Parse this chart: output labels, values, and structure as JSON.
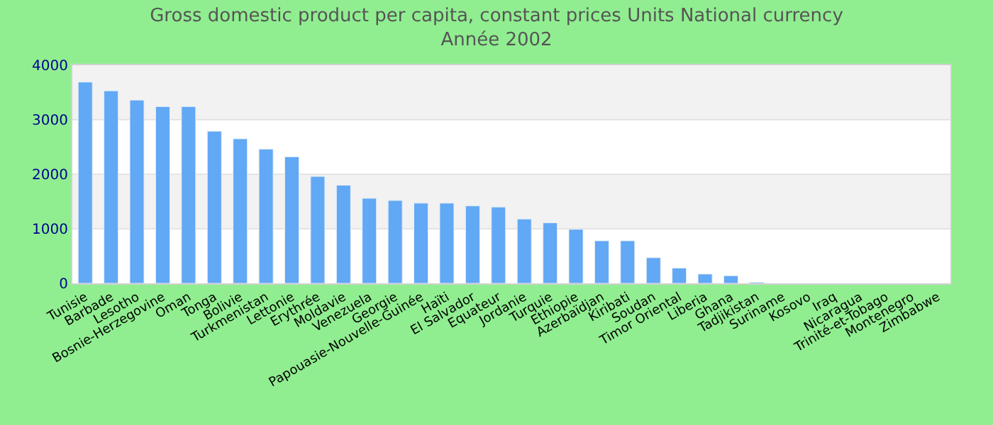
{
  "chart_data": {
    "type": "bar",
    "title": "Gross domestic product per capita, constant prices Units National currency",
    "subtitle": "Année 2002",
    "categories": [
      "Tunisie",
      "Barbade",
      "Lesotho",
      "Bosnie-Herzegovine",
      "Oman",
      "Tonga",
      "Bolivie",
      "Turkmenistan",
      "Lettonie",
      "Erythrée",
      "Moldavie",
      "Venezuela",
      "Georgie",
      "Papouasie-Nouvelle-Guinée",
      "Haïti",
      "El Salvador",
      "Equateur",
      "Jordanie",
      "Turquie",
      "Ethiopie",
      "Azerbaïdjan",
      "Kiribati",
      "Soudan",
      "Timor Oriental",
      "Liberia",
      "Ghana",
      "Tadjikistan",
      "Suriname",
      "Kosovo",
      "Iraq",
      "Nicaragua",
      "Trinité-et-Tobago",
      "Montenegro",
      "Zimbabwe"
    ],
    "values": [
      3690,
      3530,
      3360,
      3240,
      3240,
      2790,
      2650,
      2460,
      2320,
      1960,
      1800,
      1560,
      1520,
      1470,
      1470,
      1420,
      1400,
      1180,
      1110,
      990,
      780,
      780,
      470,
      280,
      170,
      140,
      20,
      null,
      null,
      null,
      null,
      null,
      null,
      null
    ],
    "color": "#61a8f5",
    "ylim": [
      0,
      4000
    ],
    "yticks": [
      0,
      1000,
      2000,
      3000,
      4000
    ],
    "grid": "y"
  }
}
